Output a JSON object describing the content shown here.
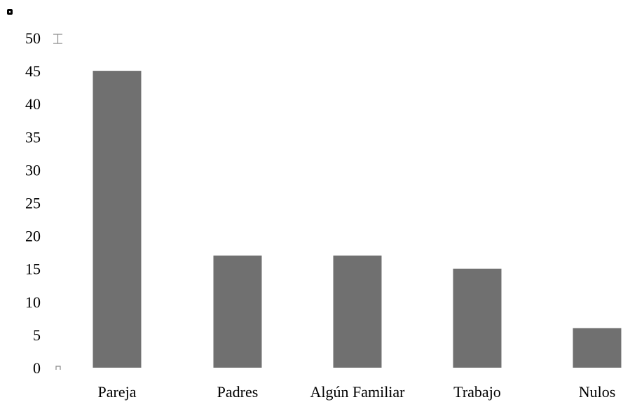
{
  "chart_data": {
    "type": "bar",
    "categories": [
      "Pareja",
      "Padres",
      "Algún Familiar",
      "Trabajo",
      "Nulos"
    ],
    "values": [
      45,
      17,
      17,
      15,
      6
    ],
    "ylim": [
      0,
      50
    ],
    "yticks": [
      "0",
      "5",
      "10",
      "15",
      "20",
      "25",
      "30",
      "35",
      "40",
      "45",
      "50"
    ],
    "ytick_values": [
      0,
      5,
      10,
      15,
      20,
      25,
      30,
      35,
      40,
      45,
      50
    ],
    "title": "",
    "xlabel": "",
    "ylabel": "",
    "grid": false,
    "legend": "none",
    "colors": {
      "bar": "#707070",
      "axis_glyph": "#888888",
      "text": "#000000"
    }
  }
}
